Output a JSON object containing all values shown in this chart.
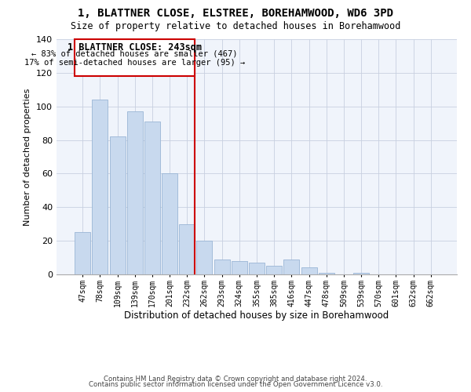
{
  "title": "1, BLATTNER CLOSE, ELSTREE, BOREHAMWOOD, WD6 3PD",
  "subtitle": "Size of property relative to detached houses in Borehamwood",
  "xlabel": "Distribution of detached houses by size in Borehamwood",
  "ylabel": "Number of detached properties",
  "bar_labels": [
    "47sqm",
    "78sqm",
    "109sqm",
    "139sqm",
    "170sqm",
    "201sqm",
    "232sqm",
    "262sqm",
    "293sqm",
    "324sqm",
    "355sqm",
    "385sqm",
    "416sqm",
    "447sqm",
    "478sqm",
    "509sqm",
    "539sqm",
    "570sqm",
    "601sqm",
    "632sqm",
    "662sqm"
  ],
  "bar_values": [
    25,
    104,
    82,
    97,
    91,
    60,
    30,
    20,
    9,
    8,
    7,
    5,
    9,
    4,
    1,
    0,
    1,
    0,
    0,
    0,
    0
  ],
  "bar_color": "#c8d9ee",
  "bar_edge_color": "#9ab5d5",
  "vline_color": "#cc0000",
  "annotation_title": "1 BLATTNER CLOSE: 243sqm",
  "annotation_line1": "← 83% of detached houses are smaller (467)",
  "annotation_line2": "17% of semi-detached houses are larger (95) →",
  "annotation_box_color": "#ffffff",
  "annotation_box_edge": "#cc0000",
  "ylim": [
    0,
    140
  ],
  "yticks": [
    0,
    20,
    40,
    60,
    80,
    100,
    120,
    140
  ],
  "footer1": "Contains HM Land Registry data © Crown copyright and database right 2024.",
  "footer2": "Contains public sector information licensed under the Open Government Licence v3.0.",
  "bg_color": "#f0f4fb"
}
